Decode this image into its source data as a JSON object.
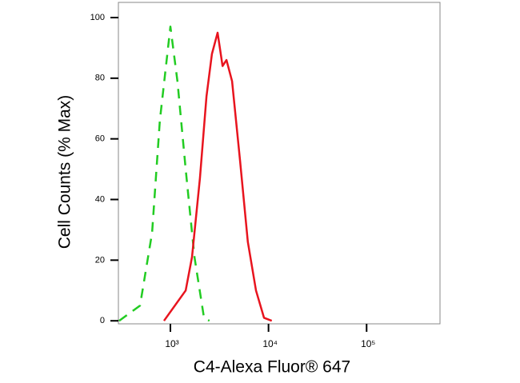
{
  "chart_data": {
    "type": "line",
    "xlabel": "C4-Alexa Fluor® 647",
    "ylabel": "Cell Counts (% Max)",
    "xscale": "log",
    "xlim": [
      295,
      560000
    ],
    "ylim": [
      -1,
      105
    ],
    "xticks": [
      {
        "value": 1000,
        "label": "10³"
      },
      {
        "value": 10000,
        "label": "10⁴"
      },
      {
        "value": 100000,
        "label": "10⁵"
      }
    ],
    "yticks": [
      0,
      20,
      40,
      60,
      80,
      100
    ],
    "series": [
      {
        "color": "#22cc22",
        "linestyle": "dashed",
        "x": [
          300,
          490,
          650,
          780,
          1000,
          1180,
          1430,
          1760,
          2200,
          2500
        ],
        "values": [
          0,
          5,
          29,
          66,
          97,
          79,
          50,
          21,
          1,
          0
        ]
      },
      {
        "color": "#e8141e",
        "linestyle": "solid",
        "x": [
          860,
          1430,
          1660,
          2000,
          2330,
          2650,
          3030,
          3400,
          3730,
          4250,
          5120,
          6160,
          7450,
          9000,
          10800
        ],
        "values": [
          0,
          10,
          21,
          47,
          74,
          88,
          95,
          84,
          86,
          79,
          53,
          26,
          10,
          1,
          0
        ]
      }
    ]
  }
}
